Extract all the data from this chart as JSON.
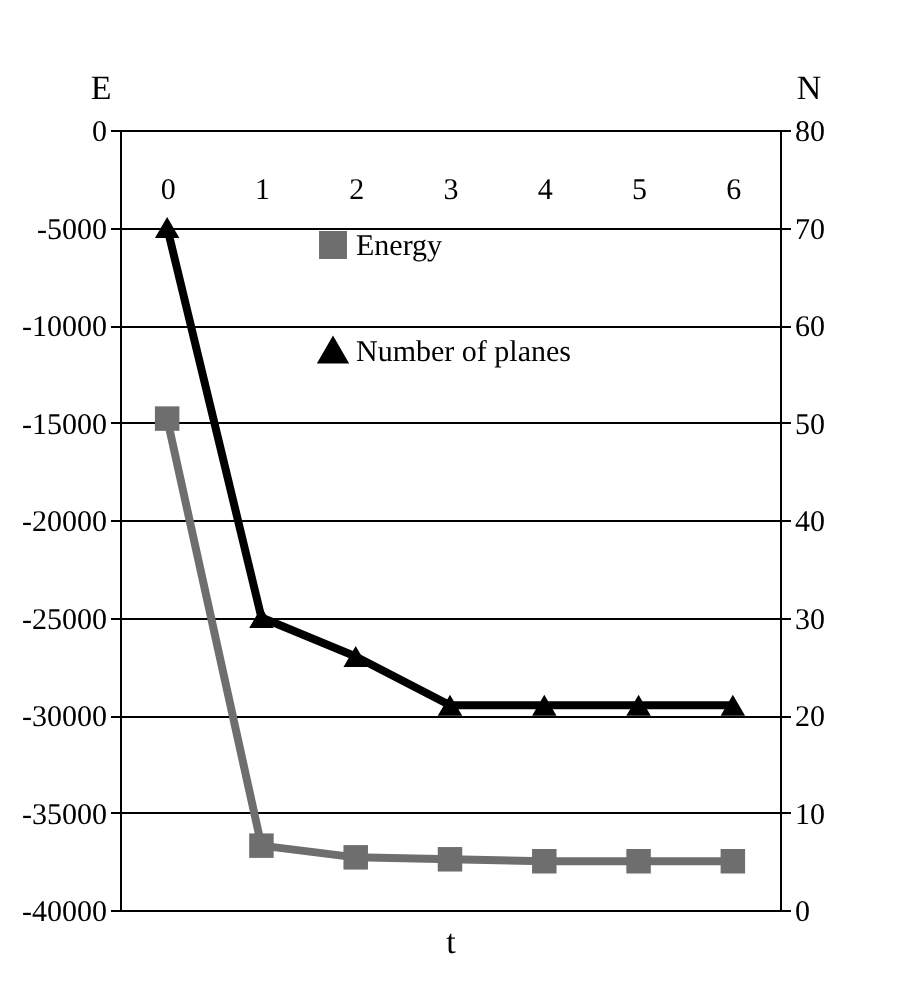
{
  "chart_data": {
    "type": "line",
    "xlabel": "t",
    "ylabel": "E",
    "y2label": "N",
    "categories": [
      "0",
      "1",
      "2",
      "3",
      "4",
      "5",
      "6"
    ],
    "series": [
      {
        "name": "Energy",
        "color": "#6e6e6e",
        "marker": "square",
        "values": [
          -14800,
          -36700,
          -37300,
          -37400,
          -37500,
          -37500,
          -37500
        ]
      },
      {
        "name": "Number of planes",
        "color": "#000000",
        "marker": "triangle",
        "axis": "y2",
        "values": [
          70,
          30,
          26,
          21,
          21,
          21,
          21
        ]
      }
    ],
    "ylim": [
      -40000,
      0
    ],
    "yticks": [
      -40000,
      -35000,
      -30000,
      -25000,
      -20000,
      -15000,
      -10000,
      -5000,
      0
    ],
    "y2lim": [
      0,
      80
    ],
    "y2ticks": [
      0,
      10,
      20,
      30,
      40,
      50,
      60,
      70,
      80
    ],
    "grid": "y",
    "legend": "top",
    "line_style": "solid"
  }
}
